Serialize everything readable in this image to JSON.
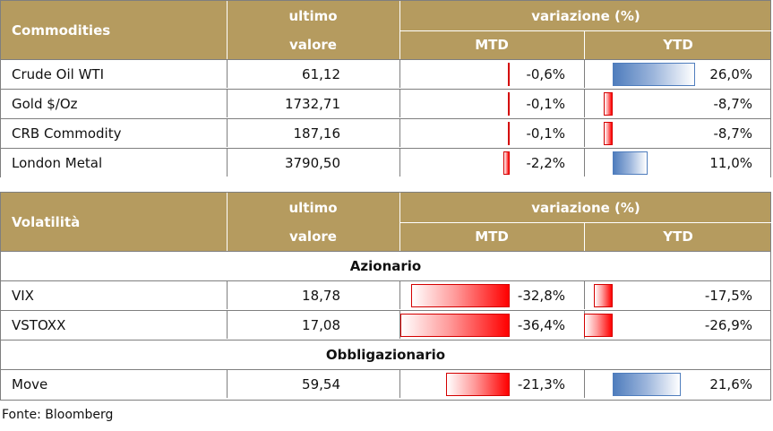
{
  "commodities": {
    "header": {
      "label": "Commodities",
      "ultimo": "ultimo",
      "valore": "valore",
      "variazione": "variazione (%)",
      "mtd": "MTD",
      "ytd": "YTD"
    },
    "rows": [
      {
        "name": "Crude Oil WTI",
        "value": "61,12",
        "mtd": "-0,6%",
        "mtd_num": -0.6,
        "ytd": "26,0%",
        "ytd_num": 26.0
      },
      {
        "name": "Gold $/Oz",
        "value": "1732,71",
        "mtd": "-0,1%",
        "mtd_num": -0.1,
        "ytd": "-8,7%",
        "ytd_num": -8.7
      },
      {
        "name": "CRB Commodity",
        "value": "187,16",
        "mtd": "-0,1%",
        "mtd_num": -0.1,
        "ytd": "-8,7%",
        "ytd_num": -8.7
      },
      {
        "name": "London Metal",
        "value": "3790,50",
        "mtd": "-2,2%",
        "mtd_num": -2.2,
        "ytd": "11,0%",
        "ytd_num": 11.0
      }
    ]
  },
  "volatility": {
    "header": {
      "label": "Volatilità",
      "ultimo": "ultimo",
      "valore": "valore",
      "variazione": "variazione (%)",
      "mtd": "MTD",
      "ytd": "YTD"
    },
    "sections": [
      {
        "title": "Azionario",
        "rows": [
          {
            "name": "VIX",
            "value": "18,78",
            "mtd": "-32,8%",
            "mtd_num": -32.8,
            "ytd": "-17,5%",
            "ytd_num": -17.5
          },
          {
            "name": "VSTOXX",
            "value": "17,08",
            "mtd": "-36,4%",
            "mtd_num": -36.4,
            "ytd": "-26,9%",
            "ytd_num": -26.9
          }
        ]
      },
      {
        "title": "Obbligazionario",
        "rows": [
          {
            "name": "Move",
            "value": "59,54",
            "mtd": "-21,3%",
            "mtd_num": -21.3,
            "ytd": "21,6%",
            "ytd_num": 21.6
          }
        ]
      }
    ]
  },
  "source": "Fonte: Bloomberg"
}
